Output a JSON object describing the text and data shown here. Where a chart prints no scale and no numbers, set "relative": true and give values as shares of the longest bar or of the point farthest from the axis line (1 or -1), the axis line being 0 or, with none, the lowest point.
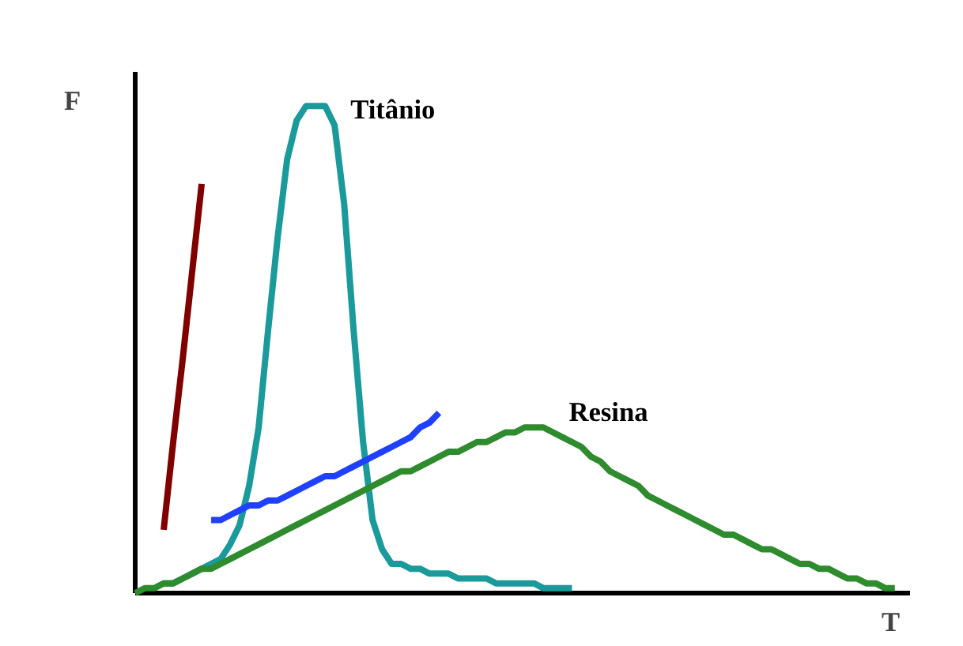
{
  "chart_data": {
    "type": "line",
    "relative": true,
    "xlabel": "T",
    "ylabel": "F",
    "marker": "none",
    "line_style": "solid",
    "categories": [
      null,
      null,
      null,
      null,
      null,
      null,
      null,
      null,
      null,
      null,
      null,
      null,
      null,
      null,
      null,
      null,
      null,
      null,
      null,
      null,
      null,
      null,
      null,
      null,
      null,
      null,
      null,
      null,
      null,
      null,
      null,
      null,
      null,
      null,
      null,
      null,
      null,
      null,
      null,
      null,
      null,
      null,
      null,
      null,
      null,
      null,
      null,
      null,
      null,
      null,
      null,
      null,
      null,
      null,
      null,
      null,
      null,
      null,
      null,
      null,
      null,
      null,
      null,
      null,
      null,
      null,
      null,
      null,
      null,
      null,
      null,
      null,
      null,
      null,
      null,
      null,
      null,
      null,
      null,
      null,
      null
    ],
    "series": [
      {
        "color": "#800000",
        "values": [
          null,
          null,
          null,
          0.13,
          0.31,
          0.48,
          0.66,
          0.84,
          null,
          null,
          null,
          null,
          null,
          null,
          null,
          null,
          null,
          null,
          null,
          null,
          null,
          null,
          null,
          null,
          null,
          null,
          null,
          null,
          null,
          null,
          null,
          null,
          null,
          null,
          null,
          null,
          null,
          null,
          null,
          null,
          null,
          null,
          null,
          null,
          null,
          null,
          null,
          null,
          null,
          null,
          null,
          null,
          null,
          null,
          null,
          null,
          null,
          null,
          null,
          null,
          null,
          null,
          null,
          null,
          null,
          null,
          null,
          null,
          null,
          null,
          null,
          null,
          null,
          null,
          null,
          null,
          null,
          null,
          null,
          null,
          null
        ]
      },
      {
        "name": "Titânio",
        "color": "#1a9a9a",
        "values": [
          null,
          null,
          null,
          0.02,
          0.02,
          0.03,
          0.04,
          0.05,
          0.06,
          0.07,
          0.1,
          0.14,
          0.22,
          0.34,
          0.54,
          0.73,
          0.89,
          0.97,
          1.0,
          1.0,
          1.0,
          0.96,
          0.8,
          0.54,
          0.31,
          0.15,
          0.09,
          0.06,
          0.06,
          0.05,
          0.05,
          0.04,
          0.04,
          0.04,
          0.03,
          0.03,
          0.03,
          0.03,
          0.02,
          0.02,
          0.02,
          0.02,
          0.02,
          0.01,
          0.01,
          0.01,
          0.01,
          null,
          null,
          null,
          null,
          null,
          null,
          null,
          null,
          null,
          null,
          null,
          null,
          null,
          null,
          null,
          null,
          null,
          null,
          null,
          null,
          null,
          null,
          null,
          null,
          null,
          null,
          null,
          null,
          null,
          null,
          null,
          null,
          null,
          null
        ]
      },
      {
        "color": "#2040ff",
        "values": [
          null,
          null,
          null,
          null,
          null,
          null,
          null,
          null,
          0.15,
          0.15,
          0.16,
          0.17,
          0.18,
          0.18,
          0.19,
          0.19,
          0.2,
          0.21,
          0.22,
          0.23,
          0.24,
          0.24,
          0.25,
          0.26,
          0.27,
          0.28,
          0.29,
          0.3,
          0.31,
          0.32,
          0.34,
          0.35,
          0.37,
          null,
          null,
          null,
          null,
          null,
          null,
          null,
          null,
          null,
          null,
          null,
          null,
          null,
          null,
          null,
          null,
          null,
          null,
          null,
          null,
          null,
          null,
          null,
          null,
          null,
          null,
          null,
          null,
          null,
          null,
          null,
          null,
          null,
          null,
          null,
          null,
          null,
          null,
          null,
          null,
          null,
          null,
          null,
          null,
          null,
          null,
          null,
          null
        ]
      },
      {
        "name": "Resina",
        "color": "#2e8b2e",
        "values": [
          0,
          0.01,
          0.01,
          0.02,
          0.02,
          0.03,
          0.04,
          0.05,
          0.05,
          0.06,
          0.07,
          0.08,
          0.09,
          0.1,
          0.11,
          0.12,
          0.13,
          0.14,
          0.15,
          0.16,
          0.17,
          0.18,
          0.19,
          0.2,
          0.21,
          0.22,
          0.23,
          0.24,
          0.25,
          0.25,
          0.26,
          0.27,
          0.28,
          0.29,
          0.29,
          0.3,
          0.31,
          0.31,
          0.32,
          0.33,
          0.33,
          0.34,
          0.34,
          0.34,
          0.33,
          0.32,
          0.31,
          0.3,
          0.28,
          0.27,
          0.25,
          0.24,
          0.23,
          0.22,
          0.2,
          0.19,
          0.18,
          0.17,
          0.16,
          0.15,
          0.14,
          0.13,
          0.12,
          0.12,
          0.11,
          0.1,
          0.09,
          0.09,
          0.08,
          0.07,
          0.06,
          0.06,
          0.05,
          0.05,
          0.04,
          0.03,
          0.03,
          0.02,
          0.02,
          0.01,
          0.01
        ]
      }
    ]
  }
}
